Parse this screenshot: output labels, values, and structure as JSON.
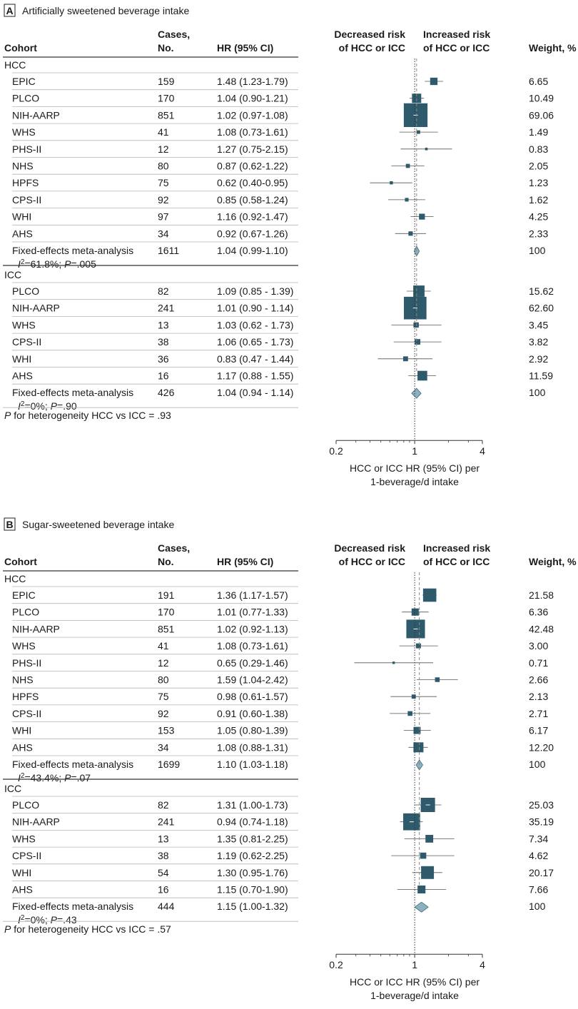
{
  "colors": {
    "marker": "#2e5a6b",
    "diamond": "#8fb0bf",
    "diamond_stroke": "#3f6b7c",
    "rule": "#b5b5b5",
    "rule_dark": "#333333"
  },
  "axis_ticks": [
    "0.2",
    "1",
    "4"
  ],
  "chart_data": [
    {
      "type": "forest",
      "panel_letter": "A",
      "title": "Artificially sweetened beverage intake",
      "columns": {
        "cohort": "Cohort",
        "cases_1": "Cases,",
        "cases_2": "No.",
        "hr": "HR (95% CI)",
        "dec_1": "Decreased risk",
        "dec_2": "of HCC or ICC",
        "inc_1": "Increased risk",
        "inc_2": "of HCC or ICC",
        "weight": "Weight, %"
      },
      "xlabel_1": "HCC or ICC HR (95% CI) per",
      "xlabel_2": "1-beverage/d intake",
      "x_scale": "log",
      "xlim": [
        0.2,
        4
      ],
      "groups": [
        {
          "label": "HCC",
          "rows": [
            {
              "cohort": "EPIC",
              "cases": "159",
              "hr_text": "1.48 (1.23-1.79)",
              "hr": 1.48,
              "lo": 1.23,
              "hi": 1.79,
              "weight_text": "6.65",
              "weight": 6.65
            },
            {
              "cohort": "PLCO",
              "cases": "170",
              "hr_text": "1.04 (0.90-1.21)",
              "hr": 1.04,
              "lo": 0.9,
              "hi": 1.21,
              "weight_text": "10.49",
              "weight": 10.49
            },
            {
              "cohort": "NIH-AARP",
              "cases": "851",
              "hr_text": "1.02 (0.97-1.08)",
              "hr": 1.02,
              "lo": 0.97,
              "hi": 1.08,
              "weight_text": "69.06",
              "weight": 69.06
            },
            {
              "cohort": "WHS",
              "cases": "41",
              "hr_text": "1.08 (0.73-1.61)",
              "hr": 1.08,
              "lo": 0.73,
              "hi": 1.61,
              "weight_text": "1.49",
              "weight": 1.49
            },
            {
              "cohort": "PHS-II",
              "cases": "12",
              "hr_text": "1.27 (0.75-2.15)",
              "hr": 1.27,
              "lo": 0.75,
              "hi": 2.15,
              "weight_text": "0.83",
              "weight": 0.83
            },
            {
              "cohort": "NHS",
              "cases": "80",
              "hr_text": "0.87 (0.62-1.22)",
              "hr": 0.87,
              "lo": 0.62,
              "hi": 1.22,
              "weight_text": "2.05",
              "weight": 2.05
            },
            {
              "cohort": "HPFS",
              "cases": "75",
              "hr_text": "0.62 (0.40-0.95)",
              "hr": 0.62,
              "lo": 0.4,
              "hi": 0.95,
              "weight_text": "1.23",
              "weight": 1.23
            },
            {
              "cohort": "CPS-II",
              "cases": "92",
              "hr_text": "0.85 (0.58-1.24)",
              "hr": 0.85,
              "lo": 0.58,
              "hi": 1.24,
              "weight_text": "1.62",
              "weight": 1.62
            },
            {
              "cohort": "WHI",
              "cases": "97",
              "hr_text": "1.16 (0.92-1.47)",
              "hr": 1.16,
              "lo": 0.92,
              "hi": 1.47,
              "weight_text": "4.25",
              "weight": 4.25
            },
            {
              "cohort": "AHS",
              "cases": "34",
              "hr_text": "0.92 (0.67-1.26)",
              "hr": 0.92,
              "lo": 0.67,
              "hi": 1.26,
              "weight_text": "2.33",
              "weight": 2.33
            }
          ],
          "meta": {
            "label": "Fixed-effects meta-analysis",
            "i2_value": "=61.8%; ",
            "p_value": "=.005",
            "cases": "1611",
            "hr_text": "1.04 (0.99-1.10)",
            "hr": 1.04,
            "lo": 0.99,
            "hi": 1.1,
            "weight_text": "100"
          }
        },
        {
          "label": "ICC",
          "rows": [
            {
              "cohort": "PLCO",
              "cases": "82",
              "hr_text": "1.09 (0.85 - 1.39)",
              "hr": 1.09,
              "lo": 0.85,
              "hi": 1.39,
              "weight_text": "15.62",
              "weight": 15.62
            },
            {
              "cohort": "NIH-AARP",
              "cases": "241",
              "hr_text": "1.01 (0.90 - 1.14)",
              "hr": 1.01,
              "lo": 0.9,
              "hi": 1.14,
              "weight_text": "62.60",
              "weight": 62.6
            },
            {
              "cohort": "WHS",
              "cases": "13",
              "hr_text": "1.03 (0.62 - 1.73)",
              "hr": 1.03,
              "lo": 0.62,
              "hi": 1.73,
              "weight_text": "3.45",
              "weight": 3.45
            },
            {
              "cohort": "CPS-II",
              "cases": "38",
              "hr_text": "1.06 (0.65 - 1.73)",
              "hr": 1.06,
              "lo": 0.65,
              "hi": 1.73,
              "weight_text": "3.82",
              "weight": 3.82
            },
            {
              "cohort": "WHI",
              "cases": "36",
              "hr_text": "0.83 (0.47 - 1.44)",
              "hr": 0.83,
              "lo": 0.47,
              "hi": 1.44,
              "weight_text": "2.92",
              "weight": 2.92
            },
            {
              "cohort": "AHS",
              "cases": "16",
              "hr_text": "1.17 (0.88 - 1.55)",
              "hr": 1.17,
              "lo": 0.88,
              "hi": 1.55,
              "weight_text": "11.59",
              "weight": 11.59
            }
          ],
          "meta": {
            "label": "Fixed-effects meta-analysis",
            "i2_value": "=0%; ",
            "p_value": "=.90",
            "cases": "426",
            "hr_text": "1.04 (0.94 - 1.14)",
            "hr": 1.04,
            "lo": 0.94,
            "hi": 1.14,
            "weight_text": "100"
          }
        }
      ],
      "heterogeneity_text": " for heterogeneity HCC vs ICC = .93",
      "heterogeneity_p": "P"
    },
    {
      "type": "forest",
      "panel_letter": "B",
      "title": "Sugar-sweetened beverage intake",
      "columns": {
        "cohort": "Cohort",
        "cases_1": "Cases,",
        "cases_2": "No.",
        "hr": "HR (95% CI)",
        "dec_1": "Decreased risk",
        "dec_2": "of HCC or ICC",
        "inc_1": "Increased risk",
        "inc_2": "of HCC or ICC",
        "weight": "Weight, %"
      },
      "xlabel_1": "HCC or ICC HR (95% CI) per",
      "xlabel_2": "1-beverage/d intake",
      "x_scale": "log",
      "xlim": [
        0.2,
        4
      ],
      "groups": [
        {
          "label": "HCC",
          "rows": [
            {
              "cohort": "EPIC",
              "cases": "191",
              "hr_text": "1.36 (1.17-1.57)",
              "hr": 1.36,
              "lo": 1.17,
              "hi": 1.57,
              "weight_text": "21.58",
              "weight": 21.58
            },
            {
              "cohort": "PLCO",
              "cases": "170",
              "hr_text": "1.01 (0.77-1.33)",
              "hr": 1.01,
              "lo": 0.77,
              "hi": 1.33,
              "weight_text": "6.36",
              "weight": 6.36
            },
            {
              "cohort": "NIH-AARP",
              "cases": "851",
              "hr_text": "1.02 (0.92-1.13)",
              "hr": 1.02,
              "lo": 0.92,
              "hi": 1.13,
              "weight_text": "42.48",
              "weight": 42.48
            },
            {
              "cohort": "WHS",
              "cases": "41",
              "hr_text": "1.08 (0.73-1.61)",
              "hr": 1.08,
              "lo": 0.73,
              "hi": 1.61,
              "weight_text": "3.00",
              "weight": 3.0
            },
            {
              "cohort": "PHS-II",
              "cases": "12",
              "hr_text": "0.65 (0.29-1.46)",
              "hr": 0.65,
              "lo": 0.29,
              "hi": 1.46,
              "weight_text": "0.71",
              "weight": 0.71
            },
            {
              "cohort": "NHS",
              "cases": "80",
              "hr_text": "1.59 (1.04-2.42)",
              "hr": 1.59,
              "lo": 1.04,
              "hi": 2.42,
              "weight_text": "2.66",
              "weight": 2.66
            },
            {
              "cohort": "HPFS",
              "cases": "75",
              "hr_text": "0.98 (0.61-1.57)",
              "hr": 0.98,
              "lo": 0.61,
              "hi": 1.57,
              "weight_text": "2.13",
              "weight": 2.13
            },
            {
              "cohort": "CPS-II",
              "cases": "92",
              "hr_text": "0.91 (0.60-1.38)",
              "hr": 0.91,
              "lo": 0.6,
              "hi": 1.38,
              "weight_text": "2.71",
              "weight": 2.71
            },
            {
              "cohort": "WHI",
              "cases": "153",
              "hr_text": "1.05 (0.80-1.39)",
              "hr": 1.05,
              "lo": 0.8,
              "hi": 1.39,
              "weight_text": "6.17",
              "weight": 6.17
            },
            {
              "cohort": "AHS",
              "cases": "34",
              "hr_text": "1.08 (0.88-1.31)",
              "hr": 1.08,
              "lo": 0.88,
              "hi": 1.31,
              "weight_text": "12.20",
              "weight": 12.2
            }
          ],
          "meta": {
            "label": "Fixed-effects meta-analysis",
            "i2_value": "=43.4%; ",
            "p_value": "=.07",
            "cases": "1699",
            "hr_text": "1.10 (1.03-1.18)",
            "hr": 1.1,
            "lo": 1.03,
            "hi": 1.18,
            "weight_text": "100"
          }
        },
        {
          "label": "ICC",
          "rows": [
            {
              "cohort": "PLCO",
              "cases": "82",
              "hr_text": "1.31 (1.00-1.73)",
              "hr": 1.31,
              "lo": 1.0,
              "hi": 1.73,
              "weight_text": "25.03",
              "weight": 25.03
            },
            {
              "cohort": "NIH-AARP",
              "cases": "241",
              "hr_text": "0.94 (0.74-1.18)",
              "hr": 0.94,
              "lo": 0.74,
              "hi": 1.18,
              "weight_text": "35.19",
              "weight": 35.19
            },
            {
              "cohort": "WHS",
              "cases": "13",
              "hr_text": "1.35 (0.81-2.25)",
              "hr": 1.35,
              "lo": 0.81,
              "hi": 2.25,
              "weight_text": "7.34",
              "weight": 7.34
            },
            {
              "cohort": "CPS-II",
              "cases": "38",
              "hr_text": "1.19 (0.62-2.25)",
              "hr": 1.19,
              "lo": 0.62,
              "hi": 2.25,
              "weight_text": "4.62",
              "weight": 4.62
            },
            {
              "cohort": "WHI",
              "cases": "54",
              "hr_text": "1.30 (0.95-1.76)",
              "hr": 1.3,
              "lo": 0.95,
              "hi": 1.76,
              "weight_text": "20.17",
              "weight": 20.17
            },
            {
              "cohort": "AHS",
              "cases": "16",
              "hr_text": "1.15 (0.70-1.90)",
              "hr": 1.15,
              "lo": 0.7,
              "hi": 1.9,
              "weight_text": "7.66",
              "weight": 7.66
            }
          ],
          "meta": {
            "label": "Fixed-effects meta-analysis",
            "i2_value": "=0%; ",
            "p_value": "=.43",
            "cases": "444",
            "hr_text": "1.15 (1.00-1.32)",
            "hr": 1.15,
            "lo": 1.0,
            "hi": 1.32,
            "weight_text": "100"
          }
        }
      ],
      "heterogeneity_text": " for heterogeneity HCC vs ICC = .57",
      "heterogeneity_p": "P"
    }
  ]
}
